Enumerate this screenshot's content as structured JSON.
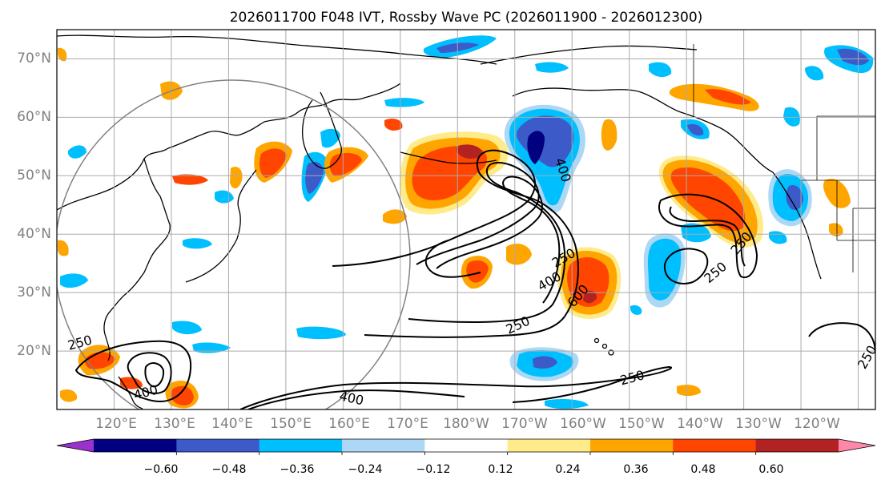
{
  "title": "2026011700 F048 IVT, Rossby Wave PC (2026011900 - 2026012300)",
  "map": {
    "latitude_labels": [
      "70°N",
      "60°N",
      "50°N",
      "40°N",
      "30°N",
      "20°N"
    ],
    "longitude_labels": [
      "120°E",
      "130°E",
      "140°E",
      "150°E",
      "160°E",
      "170°E",
      "180°W",
      "170°W",
      "160°W",
      "150°W",
      "140°W",
      "130°W",
      "120°W"
    ],
    "lat_range": [
      10,
      75
    ],
    "lon_range_east": [
      110,
      253
    ]
  },
  "ivt_contours": {
    "levels_labeled": [
      "250",
      "400",
      "600"
    ],
    "labels": [
      {
        "text": "250",
        "lon": 198.5,
        "lat": 36.0,
        "rot": -30
      },
      {
        "text": "400",
        "lon": 196.0,
        "lat": 32.0,
        "rot": -30
      },
      {
        "text": "250",
        "lon": 190.5,
        "lat": 24.5,
        "rot": -25
      },
      {
        "text": "400",
        "lon": 198.5,
        "lat": 51.0,
        "rot": 72
      },
      {
        "text": "600",
        "lon": 201.0,
        "lat": 29.5,
        "rot": -50
      },
      {
        "text": "250",
        "lon": 225.0,
        "lat": 33.5,
        "rot": -40
      },
      {
        "text": "250",
        "lon": 229.5,
        "lat": 38.5,
        "rot": -50
      },
      {
        "text": "250",
        "lon": 114.0,
        "lat": 21.5,
        "rot": -15
      },
      {
        "text": "400",
        "lon": 125.5,
        "lat": 13.0,
        "rot": -15
      },
      {
        "text": "400",
        "lon": 161.5,
        "lat": 12.0,
        "rot": 12
      },
      {
        "text": "250",
        "lon": 210.5,
        "lat": 15.5,
        "rot": -15
      },
      {
        "text": "250",
        "lon": 251.5,
        "lat": 19.0,
        "rot": -60
      }
    ]
  },
  "colorbar": {
    "tick_labels": [
      "−0.60",
      "−0.48",
      "−0.36",
      "−0.24",
      "−0.12",
      "0.12",
      "0.24",
      "0.36",
      "0.48",
      "0.60"
    ],
    "colors": [
      "#9932cc",
      "#000080",
      "#3c5ac8",
      "#00bfff",
      "#add8f5",
      "#ffffff",
      "#ffeb8a",
      "#ffa500",
      "#ff4500",
      "#b22222",
      "#ff88aa"
    ]
  },
  "colors": {
    "positive_strong": "#ff4500",
    "positive_mid": "#ffa500",
    "positive_weak": "#ffeb8a",
    "negative_weak": "#add8f5",
    "negative_mid": "#00bfff",
    "negative_strong": "#3c5ac8",
    "negative_very_strong": "#000080",
    "positive_very_strong": "#b22222",
    "grid": "#aaaaaa",
    "circle": "#808080"
  }
}
